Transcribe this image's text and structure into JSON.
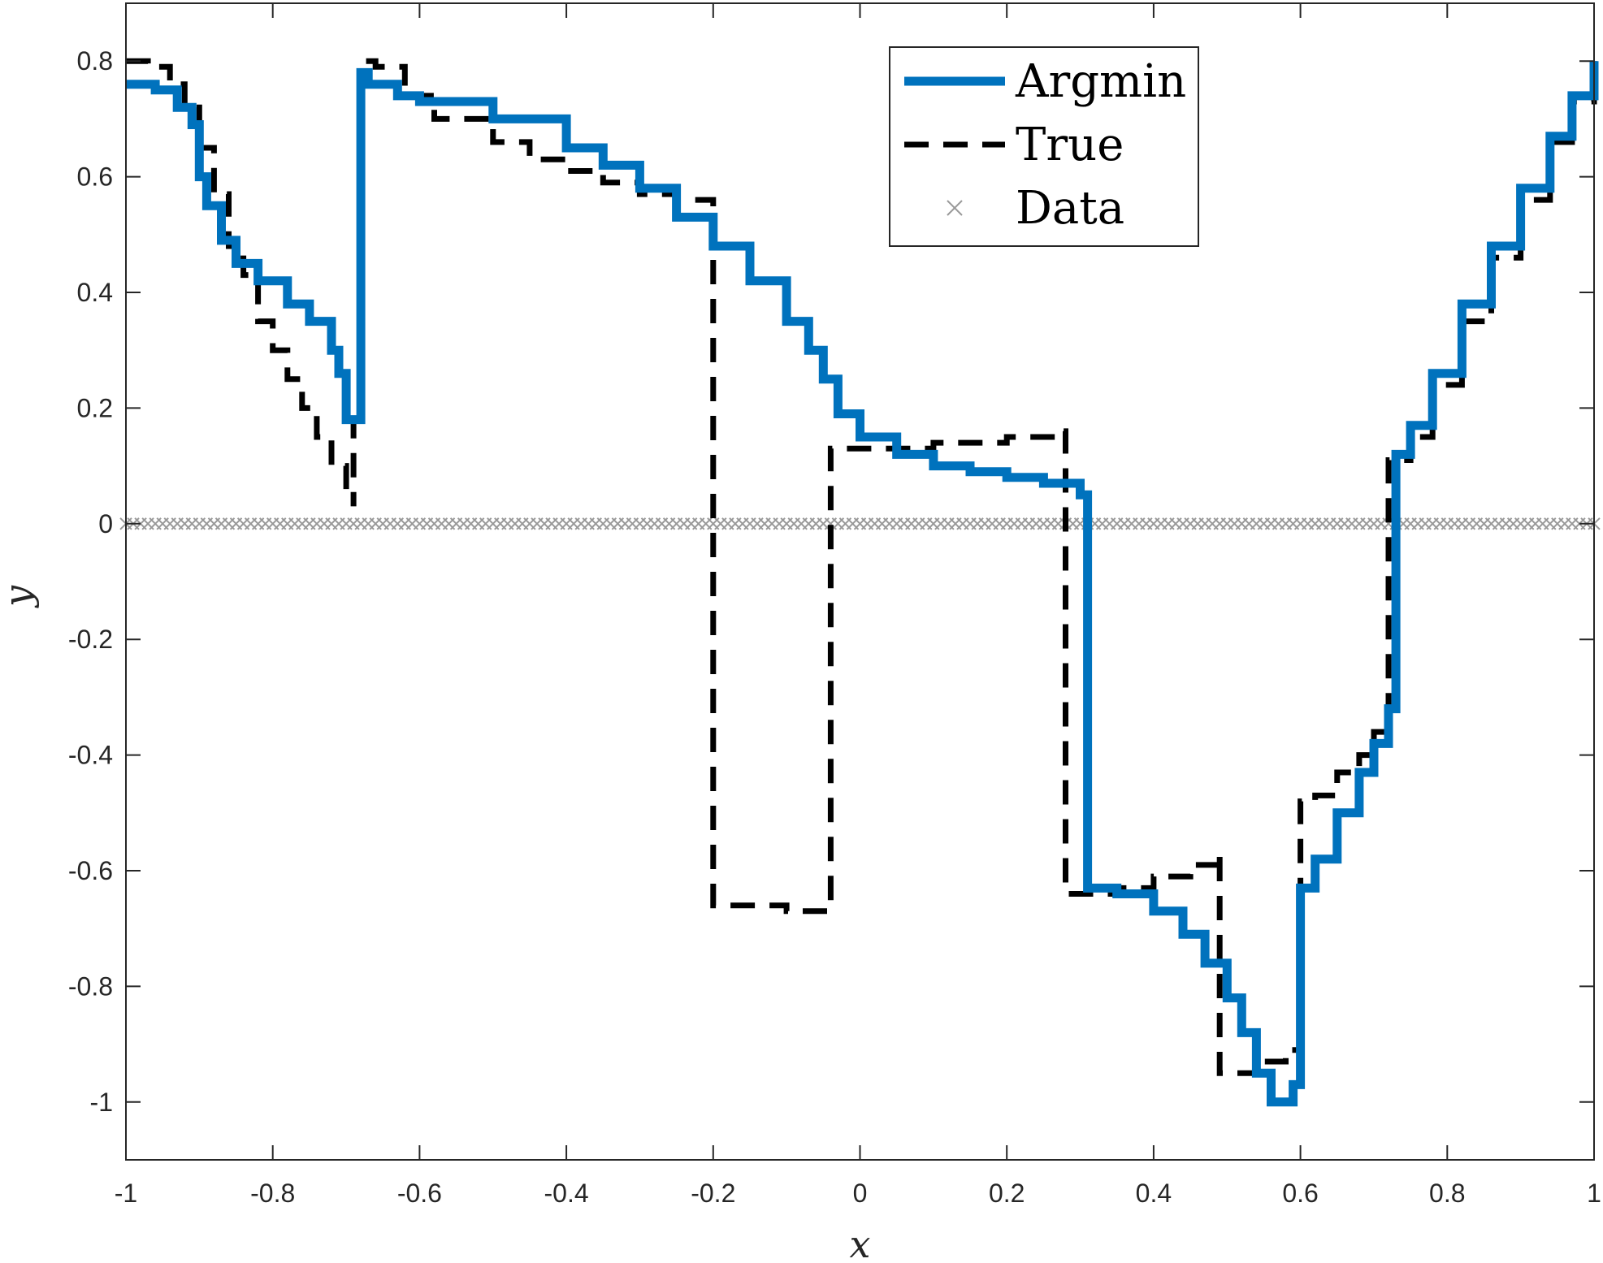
{
  "chart_data": {
    "type": "line",
    "xlabel": "x",
    "ylabel": "y",
    "xlim": [
      -1,
      1
    ],
    "ylim": [
      -1.1,
      0.9
    ],
    "x_ticks": [
      -1,
      -0.8,
      -0.6,
      -0.4,
      -0.2,
      0,
      0.2,
      0.4,
      0.6,
      0.8,
      1
    ],
    "x_tick_labels": [
      "-1",
      "-0.8",
      "-0.6",
      "-0.4",
      "-0.2",
      "0",
      "0.2",
      "0.4",
      "0.6",
      "0.8",
      "1"
    ],
    "y_ticks": [
      0.8,
      0.6,
      0.4,
      0.2,
      0,
      -0.2,
      -0.4,
      -0.6,
      -0.8,
      -1
    ],
    "y_tick_labels": [
      "0.8",
      "0.6",
      "0.4",
      "0.2",
      "0",
      "-0.2",
      "-0.4",
      "-0.6",
      "-0.8",
      "-1"
    ],
    "grid": false,
    "legend_position": "top-right",
    "series": [
      {
        "name": "Argmin",
        "style": "solid-step",
        "color": "#0072BD",
        "points": [
          [
            -1.0,
            0.76
          ],
          [
            -0.96,
            0.75
          ],
          [
            -0.93,
            0.72
          ],
          [
            -0.91,
            0.69
          ],
          [
            -0.9,
            0.6
          ],
          [
            -0.89,
            0.55
          ],
          [
            -0.87,
            0.49
          ],
          [
            -0.85,
            0.45
          ],
          [
            -0.82,
            0.42
          ],
          [
            -0.78,
            0.38
          ],
          [
            -0.75,
            0.35
          ],
          [
            -0.72,
            0.3
          ],
          [
            -0.71,
            0.26
          ],
          [
            -0.7,
            0.18
          ],
          [
            -0.68,
            0.18
          ],
          [
            -0.68,
            0.78
          ],
          [
            -0.67,
            0.76
          ],
          [
            -0.63,
            0.74
          ],
          [
            -0.6,
            0.73
          ],
          [
            -0.5,
            0.7
          ],
          [
            -0.4,
            0.65
          ],
          [
            -0.35,
            0.62
          ],
          [
            -0.3,
            0.58
          ],
          [
            -0.25,
            0.53
          ],
          [
            -0.2,
            0.48
          ],
          [
            -0.15,
            0.42
          ],
          [
            -0.1,
            0.35
          ],
          [
            -0.07,
            0.3
          ],
          [
            -0.05,
            0.25
          ],
          [
            -0.03,
            0.19
          ],
          [
            0.0,
            0.15
          ],
          [
            0.05,
            0.12
          ],
          [
            0.1,
            0.1
          ],
          [
            0.15,
            0.09
          ],
          [
            0.2,
            0.08
          ],
          [
            0.25,
            0.07
          ],
          [
            0.3,
            0.05
          ],
          [
            0.31,
            0.05
          ],
          [
            0.31,
            -0.63
          ],
          [
            0.35,
            -0.64
          ],
          [
            0.4,
            -0.67
          ],
          [
            0.44,
            -0.71
          ],
          [
            0.47,
            -0.76
          ],
          [
            0.5,
            -0.82
          ],
          [
            0.52,
            -0.88
          ],
          [
            0.54,
            -0.95
          ],
          [
            0.56,
            -1.0
          ],
          [
            0.58,
            -1.0
          ],
          [
            0.59,
            -0.97
          ],
          [
            0.6,
            -0.63
          ],
          [
            0.62,
            -0.58
          ],
          [
            0.65,
            -0.5
          ],
          [
            0.68,
            -0.43
          ],
          [
            0.7,
            -0.38
          ],
          [
            0.72,
            -0.32
          ],
          [
            0.73,
            -0.31
          ],
          [
            0.73,
            0.12
          ],
          [
            0.75,
            0.17
          ],
          [
            0.78,
            0.26
          ],
          [
            0.82,
            0.38
          ],
          [
            0.86,
            0.48
          ],
          [
            0.9,
            0.58
          ],
          [
            0.94,
            0.67
          ],
          [
            0.97,
            0.74
          ],
          [
            1.0,
            0.8
          ]
        ]
      },
      {
        "name": "True",
        "style": "dashed-step",
        "color": "#000000",
        "points": [
          [
            -1.0,
            0.8
          ],
          [
            -0.97,
            0.79
          ],
          [
            -0.94,
            0.76
          ],
          [
            -0.92,
            0.72
          ],
          [
            -0.9,
            0.65
          ],
          [
            -0.88,
            0.57
          ],
          [
            -0.86,
            0.48
          ],
          [
            -0.84,
            0.43
          ],
          [
            -0.82,
            0.35
          ],
          [
            -0.8,
            0.3
          ],
          [
            -0.78,
            0.25
          ],
          [
            -0.76,
            0.2
          ],
          [
            -0.74,
            0.15
          ],
          [
            -0.72,
            0.1
          ],
          [
            -0.7,
            0.05
          ],
          [
            -0.69,
            0.03
          ],
          [
            -0.69,
            0.18
          ],
          [
            -0.68,
            0.18
          ],
          [
            -0.68,
            0.8
          ],
          [
            -0.66,
            0.79
          ],
          [
            -0.62,
            0.74
          ],
          [
            -0.58,
            0.7
          ],
          [
            -0.5,
            0.66
          ],
          [
            -0.45,
            0.63
          ],
          [
            -0.4,
            0.61
          ],
          [
            -0.35,
            0.59
          ],
          [
            -0.3,
            0.57
          ],
          [
            -0.25,
            0.56
          ],
          [
            -0.2,
            0.55
          ],
          [
            -0.2,
            -0.66
          ],
          [
            -0.15,
            -0.66
          ],
          [
            -0.1,
            -0.67
          ],
          [
            -0.04,
            -0.67
          ],
          [
            -0.04,
            0.13
          ],
          [
            0.0,
            0.13
          ],
          [
            0.1,
            0.14
          ],
          [
            0.2,
            0.15
          ],
          [
            0.27,
            0.16
          ],
          [
            0.28,
            0.16
          ],
          [
            0.28,
            -0.64
          ],
          [
            0.35,
            -0.63
          ],
          [
            0.4,
            -0.61
          ],
          [
            0.45,
            -0.59
          ],
          [
            0.49,
            -0.57
          ],
          [
            0.49,
            -0.95
          ],
          [
            0.52,
            -0.95
          ],
          [
            0.55,
            -0.93
          ],
          [
            0.58,
            -0.91
          ],
          [
            0.6,
            -0.9
          ],
          [
            0.6,
            -0.48
          ],
          [
            0.62,
            -0.47
          ],
          [
            0.65,
            -0.43
          ],
          [
            0.68,
            -0.4
          ],
          [
            0.7,
            -0.36
          ],
          [
            0.72,
            -0.33
          ],
          [
            0.72,
            0.11
          ],
          [
            0.75,
            0.15
          ],
          [
            0.78,
            0.24
          ],
          [
            0.82,
            0.35
          ],
          [
            0.86,
            0.46
          ],
          [
            0.9,
            0.56
          ],
          [
            0.94,
            0.66
          ],
          [
            0.97,
            0.73
          ],
          [
            1.0,
            0.8
          ]
        ]
      },
      {
        "name": "Data",
        "style": "markers-x",
        "color": "#999999",
        "y_value": 0,
        "x_range": [
          -1,
          1
        ],
        "count": 201
      }
    ]
  }
}
